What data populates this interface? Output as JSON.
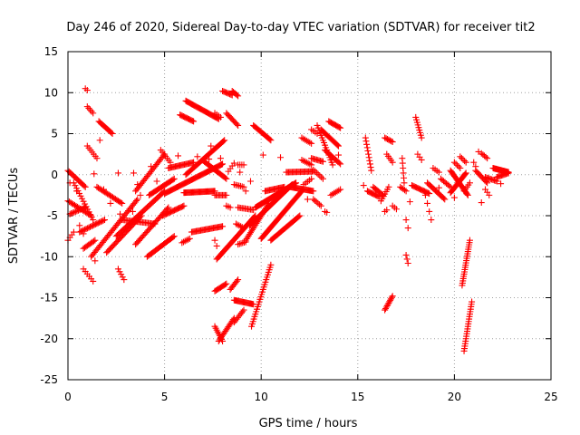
{
  "chart_data": {
    "type": "scatter",
    "title": "Day 246 of 2020, Sidereal Day-to-day VTEC variation (SDTVAR) for receiver tit2",
    "xlabel": "GPS time / hours",
    "ylabel": "SDTVAR / TECUs",
    "xlim": [
      0,
      25
    ],
    "ylim": [
      -25,
      15
    ],
    "xticks": [
      0,
      5,
      10,
      15,
      20,
      25
    ],
    "yticks": [
      15,
      10,
      5,
      0,
      -5,
      -10,
      -15,
      -20,
      -25
    ],
    "grid": true,
    "marker": "+",
    "color": "#ff0000",
    "tracks": [
      {
        "x0": 0.0,
        "x1": 0.9,
        "y0": 0.5,
        "y1": -1.5,
        "step": 0.06
      },
      {
        "x0": 0.0,
        "x1": 1.2,
        "y0": -3.2,
        "y1": -5.0,
        "step": 0.07
      },
      {
        "x0": 0.1,
        "x1": 0.9,
        "y0": -4.8,
        "y1": -4.0,
        "step": 0.07
      },
      {
        "x0": 0.0,
        "x1": 0.3,
        "y0": -8.0,
        "y1": -7.0,
        "step": 0.1
      },
      {
        "x0": 0.3,
        "x1": 1.3,
        "y0": -1.0,
        "y1": -5.5,
        "step": 0.07
      },
      {
        "x0": 0.6,
        "x1": 1.9,
        "y0": -7.0,
        "y1": -5.5,
        "step": 0.07
      },
      {
        "x0": 0.9,
        "x1": 1.0,
        "y0": 10.5,
        "y1": 10.3,
        "step": 0.1
      },
      {
        "x0": 1.0,
        "x1": 1.3,
        "y0": 8.3,
        "y1": 7.5,
        "step": 0.08
      },
      {
        "x0": 1.0,
        "x1": 1.5,
        "y0": 3.5,
        "y1": 2.0,
        "step": 0.08
      },
      {
        "x0": 1.6,
        "x1": 2.3,
        "y0": 6.5,
        "y1": 5.0,
        "step": 0.06
      },
      {
        "x0": 0.8,
        "x1": 1.4,
        "y0": -9.0,
        "y1": -8.0,
        "step": 0.07
      },
      {
        "x0": 0.8,
        "x1": 1.3,
        "y0": -11.5,
        "y1": -13.0,
        "step": 0.1
      },
      {
        "x0": 1.2,
        "x1": 3.6,
        "y0": -10.0,
        "y1": -3.0,
        "step": 0.06
      },
      {
        "x0": 1.5,
        "x1": 2.8,
        "y0": -1.5,
        "y1": -3.5,
        "step": 0.07
      },
      {
        "x0": 2.0,
        "x1": 3.8,
        "y0": -9.5,
        "y1": -5.0,
        "step": 0.06
      },
      {
        "x0": 2.6,
        "x1": 2.9,
        "y0": -11.5,
        "y1": -12.8,
        "step": 0.08
      },
      {
        "x0": 2.5,
        "x1": 5.0,
        "y0": -7.5,
        "y1": -2.0,
        "step": 0.06
      },
      {
        "x0": 2.8,
        "x1": 4.5,
        "y0": -5.5,
        "y1": -6.0,
        "step": 0.07
      },
      {
        "x0": 3.5,
        "x1": 5.2,
        "y0": -8.5,
        "y1": -4.0,
        "step": 0.06
      },
      {
        "x0": 3.5,
        "x1": 5.0,
        "y0": -2.0,
        "y1": 2.5,
        "step": 0.06
      },
      {
        "x0": 4.2,
        "x1": 5.5,
        "y0": -2.5,
        "y1": -0.5,
        "step": 0.06
      },
      {
        "x0": 4.8,
        "x1": 5.3,
        "y0": 3.0,
        "y1": 1.5,
        "step": 0.08
      },
      {
        "x0": 4.1,
        "x1": 5.5,
        "y0": -10.0,
        "y1": -7.5,
        "step": 0.06
      },
      {
        "x0": 4.9,
        "x1": 6.0,
        "y0": -5.0,
        "y1": -3.8,
        "step": 0.06
      },
      {
        "x0": 5.0,
        "x1": 8.0,
        "y0": -2.3,
        "y1": 1.3,
        "step": 0.05
      },
      {
        "x0": 5.2,
        "x1": 6.5,
        "y0": 0.8,
        "y1": 1.5,
        "step": 0.06
      },
      {
        "x0": 5.8,
        "x1": 6.5,
        "y0": 7.3,
        "y1": 6.5,
        "step": 0.06
      },
      {
        "x0": 6.1,
        "x1": 7.8,
        "y0": 9.0,
        "y1": 6.8,
        "step": 0.05
      },
      {
        "x0": 6.0,
        "x1": 7.6,
        "y0": -2.2,
        "y1": -2.0,
        "step": 0.05
      },
      {
        "x0": 6.1,
        "x1": 8.1,
        "y0": 0.0,
        "y1": 4.2,
        "step": 0.05
      },
      {
        "x0": 5.9,
        "x1": 6.3,
        "y0": -8.3,
        "y1": -7.8,
        "step": 0.08
      },
      {
        "x0": 6.4,
        "x1": 8.0,
        "y0": -7.0,
        "y1": -6.3,
        "step": 0.06
      },
      {
        "x0": 7.0,
        "x1": 8.2,
        "y0": 1.7,
        "y1": -0.5,
        "step": 0.06
      },
      {
        "x0": 7.6,
        "x1": 7.9,
        "y0": 7.5,
        "y1": 7.0,
        "step": 0.1
      },
      {
        "x0": 7.6,
        "x1": 7.7,
        "y0": -8.0,
        "y1": -8.7,
        "step": 0.1
      },
      {
        "x0": 7.7,
        "x1": 9.7,
        "y0": -10.3,
        "y1": -5.0,
        "step": 0.05
      },
      {
        "x0": 8.0,
        "x1": 8.5,
        "y0": 10.2,
        "y1": 9.7,
        "step": 0.06
      },
      {
        "x0": 8.5,
        "x1": 8.8,
        "y0": 10.2,
        "y1": 9.6,
        "step": 0.06
      },
      {
        "x0": 8.2,
        "x1": 8.8,
        "y0": 7.5,
        "y1": 6.0,
        "step": 0.06
      },
      {
        "x0": 7.6,
        "x1": 8.2,
        "y0": -2.5,
        "y1": -2.5,
        "step": 0.07
      },
      {
        "x0": 8.2,
        "x1": 8.4,
        "y0": -3.8,
        "y1": -4.0,
        "step": 0.1
      },
      {
        "x0": 8.3,
        "x1": 8.6,
        "y0": 0.4,
        "y1": 1.4,
        "step": 0.1
      },
      {
        "x0": 7.6,
        "x1": 8.0,
        "y0": -18.5,
        "y1": -20.3,
        "step": 0.05
      },
      {
        "x0": 7.8,
        "x1": 8.6,
        "y0": -20.3,
        "y1": -17.5,
        "step": 0.05
      },
      {
        "x0": 7.6,
        "x1": 8.2,
        "y0": -14.2,
        "y1": -13.3,
        "step": 0.06
      },
      {
        "x0": 8.4,
        "x1": 8.8,
        "y0": -14.0,
        "y1": -12.8,
        "step": 0.06
      },
      {
        "x0": 8.6,
        "x1": 9.1,
        "y0": -18.0,
        "y1": -16.5,
        "step": 0.06
      },
      {
        "x0": 8.6,
        "x1": 9.6,
        "y0": -15.3,
        "y1": -15.8,
        "step": 0.05
      },
      {
        "x0": 8.8,
        "x1": 9.6,
        "y0": -4.0,
        "y1": -4.3,
        "step": 0.07
      },
      {
        "x0": 8.8,
        "x1": 9.1,
        "y0": 1.2,
        "y1": 1.2,
        "step": 0.1
      },
      {
        "x0": 8.6,
        "x1": 9.1,
        "y0": -1.2,
        "y1": -1.5,
        "step": 0.08
      },
      {
        "x0": 8.7,
        "x1": 9.1,
        "y0": -6.0,
        "y1": -6.5,
        "step": 0.08
      },
      {
        "x0": 8.8,
        "x1": 9.2,
        "y0": -8.5,
        "y1": -8.2,
        "step": 0.08
      },
      {
        "x0": 9.2,
        "x1": 10.4,
        "y0": -8.0,
        "y1": -3.5,
        "step": 0.05
      },
      {
        "x0": 9.4,
        "x1": 11.6,
        "y0": -6.2,
        "y1": -1.2,
        "step": 0.04
      },
      {
        "x0": 9.7,
        "x1": 11.8,
        "y0": -4.0,
        "y1": -1.0,
        "step": 0.04
      },
      {
        "x0": 9.6,
        "x1": 10.5,
        "y0": 6.0,
        "y1": 4.2,
        "step": 0.05
      },
      {
        "x0": 9.5,
        "x1": 10.5,
        "y0": -18.5,
        "y1": -11.0,
        "step": 0.04
      },
      {
        "x0": 10.0,
        "x1": 12.1,
        "y0": -7.8,
        "y1": -2.0,
        "step": 0.04
      },
      {
        "x0": 10.5,
        "x1": 12.0,
        "y0": -8.0,
        "y1": -5.0,
        "step": 0.05
      },
      {
        "x0": 10.2,
        "x1": 11.2,
        "y0": -2.0,
        "y1": -1.5,
        "step": 0.06
      },
      {
        "x0": 11.5,
        "x1": 12.7,
        "y0": -1.5,
        "y1": -2.0,
        "step": 0.05
      },
      {
        "x0": 11.3,
        "x1": 12.7,
        "y0": 0.3,
        "y1": 0.4,
        "step": 0.06
      },
      {
        "x0": 12.1,
        "x1": 12.6,
        "y0": 4.5,
        "y1": 3.8,
        "step": 0.08
      },
      {
        "x0": 12.1,
        "x1": 12.6,
        "y0": 1.8,
        "y1": 1.2,
        "step": 0.08
      },
      {
        "x0": 12.2,
        "x1": 12.6,
        "y0": -1.2,
        "y1": -0.5,
        "step": 0.1
      },
      {
        "x0": 12.6,
        "x1": 13.2,
        "y0": 2.0,
        "y1": 1.6,
        "step": 0.07
      },
      {
        "x0": 12.6,
        "x1": 12.9,
        "y0": 5.5,
        "y1": 5.0,
        "step": 0.1
      },
      {
        "x0": 12.7,
        "x1": 13.2,
        "y0": 0.6,
        "y1": -0.5,
        "step": 0.08
      },
      {
        "x0": 12.9,
        "x1": 13.7,
        "y0": 6.0,
        "y1": 1.2,
        "step": 0.05
      },
      {
        "x0": 13.1,
        "x1": 14.0,
        "y0": 5.5,
        "y1": 3.5,
        "step": 0.05
      },
      {
        "x0": 13.3,
        "x1": 14.1,
        "y0": 3.0,
        "y1": 1.3,
        "step": 0.06
      },
      {
        "x0": 13.5,
        "x1": 14.1,
        "y0": 6.5,
        "y1": 5.7,
        "step": 0.06
      },
      {
        "x0": 13.6,
        "x1": 14.1,
        "y0": -2.5,
        "y1": -1.8,
        "step": 0.08
      },
      {
        "x0": 12.7,
        "x1": 13.1,
        "y0": -3.0,
        "y1": -3.8,
        "step": 0.08
      },
      {
        "x0": 13.3,
        "x1": 13.4,
        "y0": -4.5,
        "y1": -4.6,
        "step": 0.1
      },
      {
        "x0": 15.4,
        "x1": 15.7,
        "y0": 4.5,
        "y1": 0.5,
        "step": 0.03
      },
      {
        "x0": 15.8,
        "x1": 16.3,
        "y0": -1.5,
        "y1": -2.5,
        "step": 0.06
      },
      {
        "x0": 15.5,
        "x1": 16.1,
        "y0": -2.0,
        "y1": -2.7,
        "step": 0.06
      },
      {
        "x0": 16.2,
        "x1": 16.6,
        "y0": -3.2,
        "y1": -1.5,
        "step": 0.07
      },
      {
        "x0": 16.4,
        "x1": 16.8,
        "y0": 4.5,
        "y1": 4.0,
        "step": 0.07
      },
      {
        "x0": 16.5,
        "x1": 16.8,
        "y0": 2.5,
        "y1": 1.5,
        "step": 0.08
      },
      {
        "x0": 16.4,
        "x1": 16.8,
        "y0": -16.5,
        "y1": -14.8,
        "step": 0.04
      },
      {
        "x0": 16.4,
        "x1": 16.5,
        "y0": -4.5,
        "y1": -4.3,
        "step": 0.1
      },
      {
        "x0": 16.8,
        "x1": 17.0,
        "y0": -3.8,
        "y1": -4.2,
        "step": 0.1
      },
      {
        "x0": 17.3,
        "x1": 17.4,
        "y0": 2.0,
        "y1": -1.0,
        "step": 0.02
      },
      {
        "x0": 17.2,
        "x1": 17.5,
        "y0": -1.5,
        "y1": -2.0,
        "step": 0.08
      },
      {
        "x0": 17.5,
        "x1": 17.6,
        "y0": -5.5,
        "y1": -6.5,
        "step": 0.1
      },
      {
        "x0": 17.5,
        "x1": 17.6,
        "y0": -9.8,
        "y1": -10.8,
        "step": 0.05
      },
      {
        "x0": 17.8,
        "x1": 18.7,
        "y0": -1.3,
        "y1": -2.3,
        "step": 0.06
      },
      {
        "x0": 18.0,
        "x1": 18.3,
        "y0": 7.0,
        "y1": 4.5,
        "step": 0.04
      },
      {
        "x0": 18.1,
        "x1": 18.3,
        "y0": 2.5,
        "y1": 1.8,
        "step": 0.08
      },
      {
        "x0": 18.5,
        "x1": 18.8,
        "y0": -2.5,
        "y1": -5.5,
        "step": 0.1
      },
      {
        "x0": 18.6,
        "x1": 19.5,
        "y0": -1.0,
        "y1": -3.0,
        "step": 0.06
      },
      {
        "x0": 18.9,
        "x1": 19.2,
        "y0": 0.8,
        "y1": 0.3,
        "step": 0.1
      },
      {
        "x0": 19.3,
        "x1": 19.8,
        "y0": -0.5,
        "y1": -1.5,
        "step": 0.07
      },
      {
        "x0": 19.8,
        "x1": 20.6,
        "y0": -2.2,
        "y1": 0.2,
        "step": 0.04
      },
      {
        "x0": 19.8,
        "x1": 20.7,
        "y0": 0.5,
        "y1": -2.5,
        "step": 0.04
      },
      {
        "x0": 20.0,
        "x1": 20.3,
        "y0": 1.5,
        "y1": 0.8,
        "step": 0.08
      },
      {
        "x0": 20.3,
        "x1": 20.6,
        "y0": 2.2,
        "y1": 1.5,
        "step": 0.08
      },
      {
        "x0": 20.5,
        "x1": 20.8,
        "y0": -2.0,
        "y1": -1.0,
        "step": 0.08
      },
      {
        "x0": 20.4,
        "x1": 20.8,
        "y0": -13.5,
        "y1": -8.0,
        "step": 0.02
      },
      {
        "x0": 20.5,
        "x1": 20.9,
        "y0": -21.5,
        "y1": -15.5,
        "step": 0.02
      },
      {
        "x0": 21.0,
        "x1": 21.1,
        "y0": 1.5,
        "y1": 1.0,
        "step": 0.1
      },
      {
        "x0": 21.1,
        "x1": 21.7,
        "y0": 0.5,
        "y1": -1.0,
        "step": 0.06
      },
      {
        "x0": 21.4,
        "x1": 21.7,
        "y0": 2.6,
        "y1": 2.0,
        "step": 0.08
      },
      {
        "x0": 21.6,
        "x1": 22.2,
        "y0": -0.3,
        "y1": -0.8,
        "step": 0.07
      },
      {
        "x0": 21.6,
        "x1": 21.8,
        "y0": -1.8,
        "y1": -2.5,
        "step": 0.1
      },
      {
        "x0": 22.0,
        "x1": 22.8,
        "y0": 0.8,
        "y1": 0.3,
        "step": 0.04
      },
      {
        "x0": 22.2,
        "x1": 22.8,
        "y0": -0.3,
        "y1": 0.2,
        "step": 0.06
      }
    ],
    "extra_points": [
      [
        0.1,
        -1.0
      ],
      [
        0.45,
        -2.0
      ],
      [
        0.6,
        -6.2
      ],
      [
        0.8,
        -7.2
      ],
      [
        1.35,
        0.1
      ],
      [
        1.4,
        -10.5
      ],
      [
        1.65,
        4.2
      ],
      [
        1.85,
        -1.8
      ],
      [
        2.2,
        -3.5
      ],
      [
        2.6,
        0.2
      ],
      [
        2.7,
        -4.8
      ],
      [
        3.35,
        -4.5
      ],
      [
        3.4,
        0.2
      ],
      [
        3.6,
        -1.2
      ],
      [
        3.75,
        -2.5
      ],
      [
        4.3,
        1.0
      ],
      [
        4.6,
        -0.8
      ],
      [
        5.7,
        2.3
      ],
      [
        6.7,
        2.2
      ],
      [
        7.3,
        1.9
      ],
      [
        7.4,
        3.5
      ],
      [
        7.9,
        2.0
      ],
      [
        8.9,
        0.3
      ],
      [
        9.2,
        -2.0
      ],
      [
        9.45,
        -0.8
      ],
      [
        10.1,
        2.4
      ],
      [
        11.0,
        2.1
      ],
      [
        12.4,
        -3.0
      ],
      [
        14.0,
        2.4
      ],
      [
        15.3,
        -1.3
      ],
      [
        17.7,
        -3.3
      ],
      [
        19.2,
        -1.6
      ],
      [
        20.0,
        -2.8
      ],
      [
        21.25,
        2.8
      ],
      [
        21.4,
        -3.4
      ],
      [
        22.4,
        -1.1
      ]
    ]
  }
}
